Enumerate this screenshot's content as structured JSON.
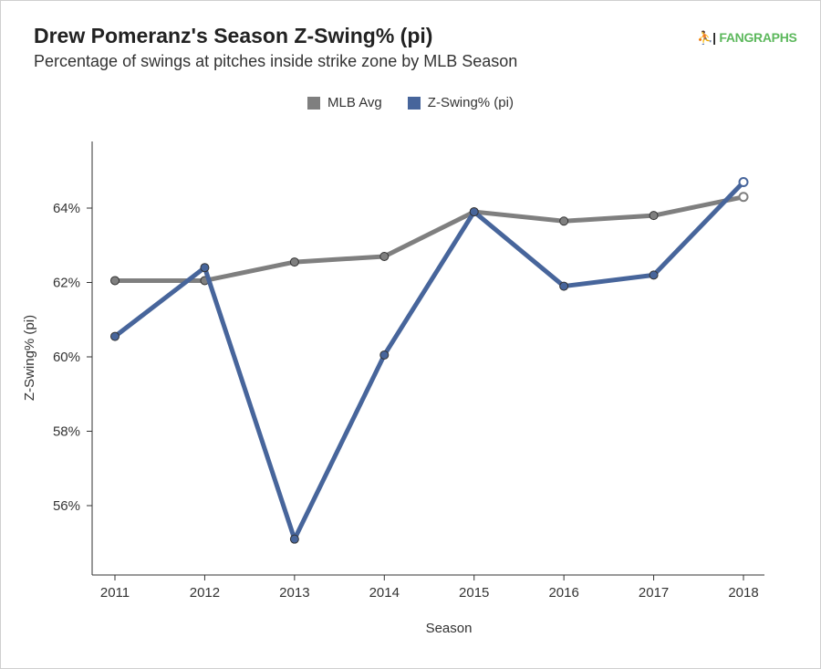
{
  "header": {
    "title": "Drew Pomeranz's Season Z-Swing% (pi)",
    "subtitle": "Percentage of swings at pitches inside strike zone by MLB Season",
    "logo_text": "FANGRAPHS"
  },
  "chart_data": {
    "type": "line",
    "title": "Drew Pomeranz's Season Z-Swing% (pi)",
    "xlabel": "Season",
    "ylabel": "Z-Swing% (pi)",
    "x": [
      2011,
      2012,
      2013,
      2014,
      2015,
      2016,
      2017,
      2018
    ],
    "x_tick_labels": [
      "2011",
      "2012",
      "2013",
      "2014",
      "2015",
      "2016",
      "2017",
      "2018"
    ],
    "y_ticks": [
      56,
      58,
      60,
      62,
      64
    ],
    "y_tick_labels": [
      "56%",
      "58%",
      "60%",
      "62%",
      "64%"
    ],
    "ylim": [
      54.5,
      66.2
    ],
    "grid": false,
    "legend_position": "top-center",
    "series": [
      {
        "name": "MLB Avg",
        "color": "#7f7f7f",
        "values": [
          62.05,
          62.05,
          62.55,
          62.7,
          63.9,
          63.65,
          63.8,
          64.3
        ]
      },
      {
        "name": "Z-Swing% (pi)",
        "color": "#47659b",
        "values": [
          60.55,
          62.4,
          55.1,
          60.05,
          63.9,
          61.9,
          62.2,
          64.7
        ]
      }
    ]
  }
}
